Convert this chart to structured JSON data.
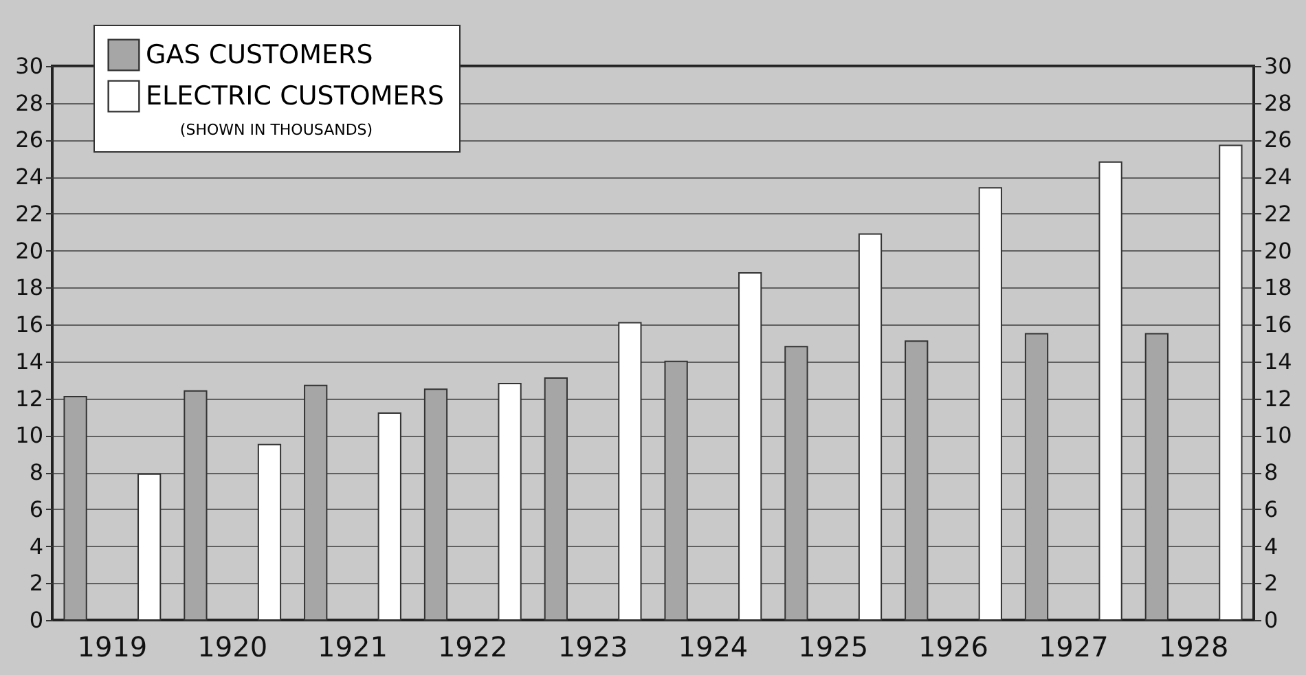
{
  "chart_data": {
    "type": "bar",
    "categories": [
      "1919",
      "1920",
      "1921",
      "1922",
      "1923",
      "1924",
      "1925",
      "1926",
      "1927",
      "1928"
    ],
    "series": [
      {
        "name": "GAS CUSTOMERS",
        "color": "#a6a6a6",
        "values": [
          12.1,
          12.4,
          12.7,
          12.5,
          13.1,
          14.0,
          14.8,
          15.1,
          15.5,
          15.5
        ]
      },
      {
        "name": "ELECTRIC CUSTOMERS",
        "color": "#ffffff",
        "values": [
          7.9,
          9.5,
          11.2,
          12.8,
          16.1,
          18.8,
          20.9,
          23.4,
          24.8,
          25.7
        ]
      }
    ],
    "ylim": [
      0,
      30
    ],
    "yticks": [
      0,
      2,
      4,
      6,
      8,
      10,
      12,
      14,
      16,
      18,
      20,
      22,
      24,
      26,
      28,
      30
    ],
    "y2lim": [
      0,
      30
    ],
    "y2ticks": [
      0,
      2,
      4,
      6,
      8,
      10,
      12,
      14,
      16,
      18,
      20,
      22,
      24,
      26,
      28,
      30
    ],
    "annotations": [
      "(SHOWN IN THOUSANDS)"
    ],
    "grid": "y",
    "legend": "top left"
  }
}
